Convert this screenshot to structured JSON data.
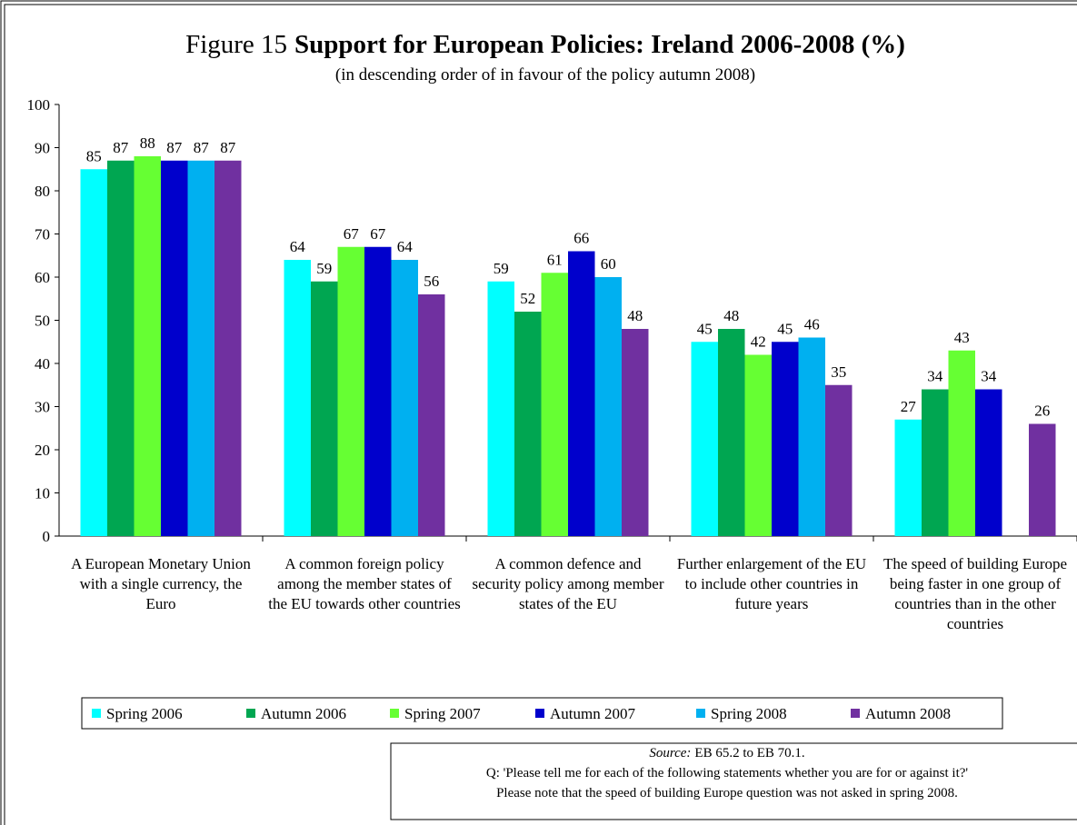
{
  "chart_data": {
    "type": "bar",
    "title_label": "Figure 15",
    "title": "Support for European Policies: Ireland 2006-2008 (%)",
    "subtitle": "(in descending order of in favour of the policy autumn 2008)",
    "categories": [
      "A European Monetary Union with a single currency, the Euro",
      "A common foreign policy among the member states of the EU towards other countries",
      "A common defence and security policy among member states of the EU",
      "Further enlargement of the EU to include other countries in future years",
      "The speed of building Europe being faster in one group of countries than in the other countries"
    ],
    "series": [
      {
        "name": "Spring 2006",
        "color": "#00ffff",
        "values": [
          85,
          64,
          59,
          45,
          27
        ]
      },
      {
        "name": "Autumn 2006",
        "color": "#00a651",
        "values": [
          87,
          59,
          52,
          48,
          34
        ]
      },
      {
        "name": "Spring 2007",
        "color": "#66ff33",
        "values": [
          88,
          67,
          61,
          42,
          43
        ]
      },
      {
        "name": "Autumn 2007",
        "color": "#0000cc",
        "values": [
          87,
          67,
          66,
          45,
          34
        ]
      },
      {
        "name": "Spring 2008",
        "color": "#00b0f0",
        "values": [
          87,
          64,
          60,
          46,
          null
        ]
      },
      {
        "name": "Autumn 2008",
        "color": "#7030a0",
        "values": [
          87,
          56,
          48,
          35,
          26
        ]
      }
    ],
    "ylim": [
      0,
      100
    ],
    "yticks": [
      0,
      10,
      20,
      30,
      40,
      50,
      60,
      70,
      80,
      90,
      100
    ],
    "source_label": "Source:",
    "source": "EB 65.2 to EB 70.1.",
    "notes": [
      "Q: 'Please tell me for each of the following statements whether you are for or against it?'",
      "Please note that the speed of building Europe question was not asked in spring 2008."
    ]
  }
}
